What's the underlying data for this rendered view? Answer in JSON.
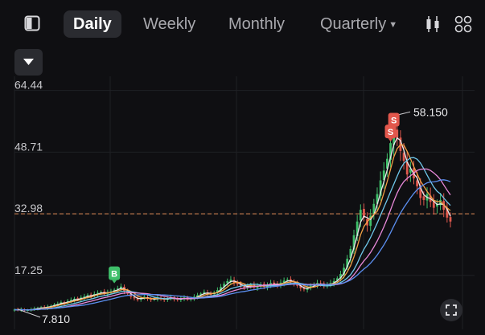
{
  "tabs": [
    {
      "label": "Daily",
      "active": true
    },
    {
      "label": "Weekly",
      "active": false
    },
    {
      "label": "Monthly",
      "active": false
    },
    {
      "label": "Quarterly",
      "active": false
    }
  ],
  "icons": {
    "layout": "sidebar-layout-icon",
    "quarterly_dropdown": "caret-down-icon",
    "chart_style": "candlestick-icon",
    "grid": "grid-icon",
    "collapse": "chevron-down-icon",
    "fullscreen": "fullscreen-icon"
  },
  "colors": {
    "up": "#3fbf6a",
    "down": "#e05a4e",
    "ma_orange": "#f3a145",
    "ma_white": "#e8e8ea",
    "ma_cyan": "#6fc7ea",
    "ma_pink": "#e889d9",
    "ma_blue": "#5b8ff0",
    "ref_line": "#e08a55",
    "marker_sell": "#e2574c",
    "marker_buy": "#3fbf6a"
  },
  "chart_data": {
    "type": "candlestick",
    "y_axis_labels": [
      "64.44",
      "48.71",
      "32.98",
      "17.25"
    ],
    "ylim": [
      4.5,
      66
    ],
    "reference_line": {
      "value": 32.98,
      "style": "dashed"
    },
    "annotations": {
      "high_label": "58.150",
      "high_value": 58.15,
      "low_label": "7.810",
      "low_value": 7.81
    },
    "markers": [
      {
        "label": "B",
        "type": "buy",
        "candle_index": 30
      },
      {
        "label": "S",
        "type": "sell",
        "candle_index": 113
      },
      {
        "label": "S",
        "type": "sell",
        "candle_index": 114
      }
    ],
    "grid": true,
    "close_values": [
      8.5,
      8.4,
      8.6,
      8.3,
      8.4,
      8.6,
      8.8,
      8.9,
      9.1,
      9.0,
      9.3,
      9.5,
      9.8,
      10.0,
      10.4,
      10.2,
      10.7,
      11.0,
      11.3,
      11.0,
      11.6,
      11.9,
      12.2,
      12.0,
      12.5,
      12.8,
      13.0,
      12.6,
      12.9,
      13.2,
      13.6,
      13.9,
      14.4,
      13.2,
      12.6,
      11.8,
      11.4,
      11.0,
      11.5,
      11.8,
      11.3,
      11.0,
      11.3,
      11.6,
      11.2,
      11.0,
      11.4,
      11.7,
      11.2,
      11.0,
      11.4,
      11.6,
      11.1,
      11.3,
      11.8,
      12.2,
      12.6,
      13.0,
      12.7,
      12.3,
      12.9,
      13.5,
      14.3,
      15.1,
      15.8,
      16.2,
      15.4,
      15.0,
      14.6,
      14.2,
      14.5,
      14.9,
      14.2,
      14.5,
      14.9,
      14.3,
      14.7,
      15.3,
      15.0,
      14.7,
      15.4,
      15.9,
      16.2,
      15.6,
      15.2,
      14.6,
      14.0,
      13.7,
      14.1,
      14.6,
      14.9,
      15.3,
      15.0,
      14.6,
      14.9,
      15.3,
      15.8,
      16.5,
      17.6,
      19.2,
      21.5,
      24.0,
      27.5,
      31.0,
      34.0,
      32.0,
      30.0,
      32.5,
      35.5,
      38.0,
      41.5,
      44.0,
      47.0,
      51.0,
      54.0,
      52.0,
      49.0,
      46.5,
      43.0,
      44.5,
      42.0,
      40.0,
      37.0,
      36.5,
      38.0,
      36.0,
      34.5,
      35.5,
      36.5,
      34.0,
      32.0,
      31.0
    ]
  }
}
